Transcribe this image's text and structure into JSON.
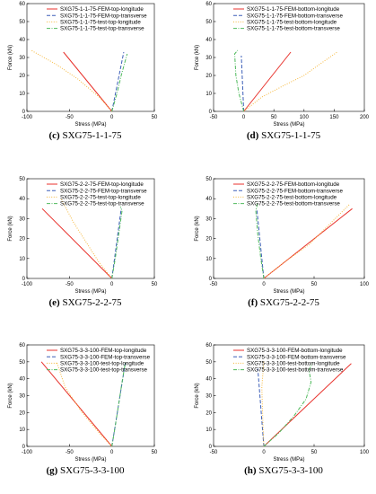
{
  "chart_data": [
    {
      "type": "line",
      "caption_letter": "(c)",
      "caption_text": " SXG75-1-1-75",
      "xlabel": "Stress (MPa)",
      "ylabel": "Force (kN)",
      "xlim": [
        -100,
        50
      ],
      "ylim": [
        0,
        60
      ],
      "xticks": [
        -100,
        -50,
        0,
        50
      ],
      "yticks": [
        0,
        10,
        20,
        30,
        40,
        50,
        60
      ],
      "legend_position": "top-right",
      "series": [
        {
          "name": "SXG75-1-1-75-FEM-top-longitude",
          "color": "#e8322c",
          "dash": "solid",
          "x": [
            0,
            -57
          ],
          "y": [
            0,
            33
          ]
        },
        {
          "name": "SXG75-1-1-75-FEM-top-transverse",
          "color": "#3d5fb8",
          "dash": "dash",
          "x": [
            0,
            14
          ],
          "y": [
            0,
            33
          ]
        },
        {
          "name": "SXG75-1-1-75-test-top-longitude",
          "color": "#f6b83c",
          "dash": "dot",
          "x": [
            0,
            -15,
            -40,
            -65,
            -95
          ],
          "y": [
            0,
            8,
            18,
            26,
            34
          ]
        },
        {
          "name": "SXG75-1-1-75-test-top-transverse",
          "color": "#4fba5c",
          "dash": "dashdot",
          "x": [
            0,
            6,
            11,
            18
          ],
          "y": [
            0,
            10,
            20,
            32
          ]
        }
      ]
    },
    {
      "type": "line",
      "caption_letter": "(d)",
      "caption_text": " SXG75-1-1-75",
      "xlabel": "Stress (MPa)",
      "ylabel": "Force (kN)",
      "xlim": [
        -50,
        200
      ],
      "ylim": [
        0,
        60
      ],
      "xticks": [
        -50,
        0,
        50,
        100,
        150,
        200
      ],
      "yticks": [
        0,
        10,
        20,
        30,
        40,
        50,
        60
      ],
      "legend_position": "top-right",
      "series": [
        {
          "name": "SXG75-1-1-75-FEM-bottom-longitude",
          "color": "#e8322c",
          "dash": "solid",
          "x": [
            0,
            78
          ],
          "y": [
            0,
            33
          ]
        },
        {
          "name": "SXG75-1-1-75-FEM-bottom-transverse",
          "color": "#3d5fb8",
          "dash": "dash",
          "x": [
            0,
            -4
          ],
          "y": [
            0,
            31
          ]
        },
        {
          "name": "SXG75-1-1-75-test-bottom-longitude",
          "color": "#f6b83c",
          "dash": "dot",
          "x": [
            0,
            30,
            70,
            100,
            125,
            155
          ],
          "y": [
            0,
            8,
            15,
            20,
            26,
            33
          ]
        },
        {
          "name": "SXG75-1-1-75-test-bottom-transverse",
          "color": "#4fba5c",
          "dash": "dashdot",
          "x": [
            0,
            -8,
            -13,
            -15,
            -10
          ],
          "y": [
            0,
            10,
            20,
            32,
            34
          ]
        }
      ]
    },
    {
      "type": "line",
      "caption_letter": "(e)",
      "caption_text": " SXG75-2-2-75",
      "xlabel": "Stress (MPa)",
      "ylabel": "Force (kN)",
      "xlim": [
        -100,
        50
      ],
      "ylim": [
        0,
        50
      ],
      "xticks": [
        -100,
        -50,
        0,
        50
      ],
      "yticks": [
        0,
        10,
        20,
        30,
        40,
        50
      ],
      "legend_position": "top-right",
      "series": [
        {
          "name": "SXG75-2-2-75-FEM-top-longitude",
          "color": "#e8322c",
          "dash": "solid",
          "x": [
            0,
            -82
          ],
          "y": [
            0,
            35
          ]
        },
        {
          "name": "SXG75-2-2-75-FEM-top-transverse",
          "color": "#3d5fb8",
          "dash": "dash",
          "x": [
            0,
            11
          ],
          "y": [
            0,
            35
          ]
        },
        {
          "name": "SXG75-2-2-75-test-top-longitude",
          "color": "#f6b83c",
          "dash": "dot",
          "x": [
            0,
            -15,
            -30,
            -45,
            -60
          ],
          "y": [
            0,
            8,
            18,
            28,
            40
          ]
        },
        {
          "name": "SXG75-2-2-75-test-top-transverse",
          "color": "#4fba5c",
          "dash": "dashdot",
          "x": [
            0,
            4,
            8,
            12,
            10
          ],
          "y": [
            0,
            10,
            22,
            34,
            36
          ]
        }
      ]
    },
    {
      "type": "line",
      "caption_letter": "(f)",
      "caption_text": " SXG75-2-2-75",
      "xlabel": "Stress (MPa)",
      "ylabel": "Force (kN)",
      "xlim": [
        -50,
        100
      ],
      "ylim": [
        0,
        50
      ],
      "xticks": [
        -50,
        0,
        50,
        100
      ],
      "yticks": [
        0,
        10,
        20,
        30,
        40,
        50
      ],
      "legend_position": "top-right",
      "series": [
        {
          "name": "SXG75-2-2-75-FEM-bottom-longitude",
          "color": "#e8322c",
          "dash": "solid",
          "x": [
            0,
            88
          ],
          "y": [
            0,
            35
          ]
        },
        {
          "name": "SXG75-2-2-75-FEM-bottom-transverse",
          "color": "#3d5fb8",
          "dash": "dash",
          "x": [
            0,
            -7
          ],
          "y": [
            0,
            35
          ]
        },
        {
          "name": "SXG75-2-2-75-test-bottom-longitude",
          "color": "#f6b83c",
          "dash": "dot",
          "x": [
            0,
            20,
            45,
            65,
            85
          ],
          "y": [
            0,
            8,
            17,
            27,
            37
          ]
        },
        {
          "name": "SXG75-2-2-75-test-bottom-transverse",
          "color": "#4fba5c",
          "dash": "dashdot",
          "x": [
            0,
            -3,
            -6,
            -8,
            -6
          ],
          "y": [
            0,
            10,
            22,
            34,
            38
          ]
        }
      ]
    },
    {
      "type": "line",
      "caption_letter": "(g)",
      "caption_text": " SXG75-3-3-100",
      "xlabel": "Stress (MPa)",
      "ylabel": "Force (kN)",
      "xlim": [
        -100,
        50
      ],
      "ylim": [
        0,
        60
      ],
      "xticks": [
        -100,
        -50,
        0,
        50
      ],
      "yticks": [
        0,
        10,
        20,
        30,
        40,
        50,
        60
      ],
      "legend_position": "top-right",
      "series": [
        {
          "name": "SXG75-3-3-100-FEM-top-longitude",
          "color": "#e8322c",
          "dash": "solid",
          "x": [
            0,
            -83
          ],
          "y": [
            0,
            50
          ]
        },
        {
          "name": "SXG75-3-3-100-FEM-top-transverse",
          "color": "#3d5fb8",
          "dash": "dash",
          "x": [
            0,
            16
          ],
          "y": [
            0,
            50
          ]
        },
        {
          "name": "SXG75-3-3-100-test-top-longitude",
          "color": "#f6b83c",
          "dash": "dot",
          "x": [
            0,
            -15,
            -35,
            -55,
            -65
          ],
          "y": [
            0,
            8,
            20,
            35,
            50
          ]
        },
        {
          "name": "SXG75-3-3-100-test-top-transverse",
          "color": "#4fba5c",
          "dash": "dashdot",
          "x": [
            0,
            4,
            8,
            12,
            16
          ],
          "y": [
            0,
            12,
            25,
            38,
            50
          ]
        }
      ]
    },
    {
      "type": "line",
      "caption_letter": "(h)",
      "caption_text": " SXG75-3-3-100",
      "xlabel": "Stress (MPa)",
      "ylabel": "Force (kN)",
      "xlim": [
        -50,
        100
      ],
      "ylim": [
        0,
        60
      ],
      "xticks": [
        -50,
        0,
        50,
        100
      ],
      "yticks": [
        0,
        10,
        20,
        30,
        40,
        50,
        60
      ],
      "legend_position": "top-right",
      "series": [
        {
          "name": "SXG75-3-3-100-FEM-bottom-longitude",
          "color": "#e8322c",
          "dash": "solid",
          "x": [
            0,
            87
          ],
          "y": [
            0,
            49
          ]
        },
        {
          "name": "SXG75-3-3-100-FEM-bottom-transverse",
          "color": "#3d5fb8",
          "dash": "dash",
          "x": [
            0,
            -6
          ],
          "y": [
            0,
            46
          ]
        },
        {
          "name": "SXG75-3-3-100-test-bottom-longitude",
          "color": "#f6b83c",
          "dash": "dot",
          "x": [
            0,
            -1,
            -2,
            0
          ],
          "y": [
            0,
            15,
            35,
            50
          ]
        },
        {
          "name": "SXG75-3-3-100-test-bottom-transverse",
          "color": "#4fba5c",
          "dash": "dashdot",
          "x": [
            0,
            15,
            30,
            42,
            47,
            45,
            48
          ],
          "y": [
            0,
            8,
            18,
            28,
            38,
            45,
            49
          ]
        }
      ]
    }
  ]
}
